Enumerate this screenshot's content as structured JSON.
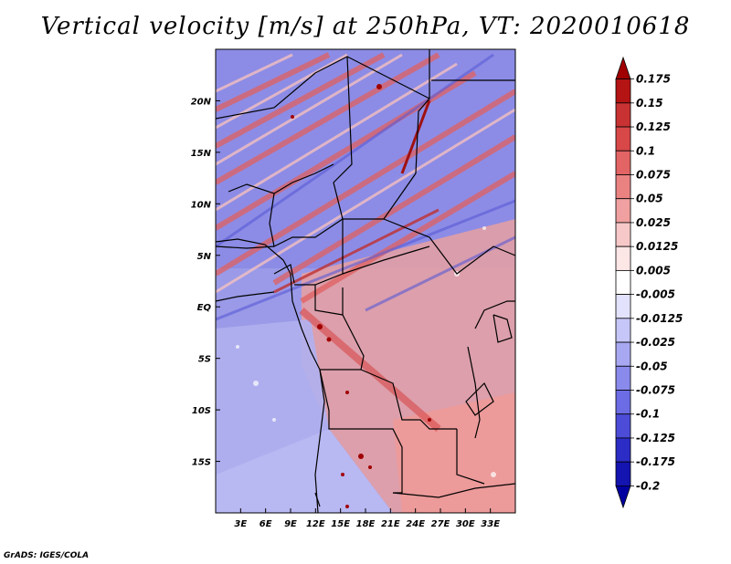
{
  "title": "Vertical velocity [m/s] at 250hPa, VT: 2020010618",
  "credit": "GrADS: IGES/COLA",
  "map": {
    "lon_range": [
      0,
      36
    ],
    "lat_range": [
      -20,
      25
    ],
    "x_ticks": [
      {
        "lon": 3,
        "label": "3E"
      },
      {
        "lon": 6,
        "label": "6E"
      },
      {
        "lon": 9,
        "label": "9E"
      },
      {
        "lon": 12,
        "label": "12E"
      },
      {
        "lon": 15,
        "label": "15E"
      },
      {
        "lon": 18,
        "label": "18E"
      },
      {
        "lon": 21,
        "label": "21E"
      },
      {
        "lon": 24,
        "label": "24E"
      },
      {
        "lon": 27,
        "label": "27E"
      },
      {
        "lon": 30,
        "label": "30E"
      },
      {
        "lon": 33,
        "label": "33E"
      }
    ],
    "y_ticks": [
      {
        "lat": 20,
        "label": "20N"
      },
      {
        "lat": 15,
        "label": "15N"
      },
      {
        "lat": 10,
        "label": "10N"
      },
      {
        "lat": 5,
        "label": "5N"
      },
      {
        "lat": 0,
        "label": "EQ"
      },
      {
        "lat": -5,
        "label": "5S"
      },
      {
        "lat": -10,
        "label": "10S"
      },
      {
        "lat": -15,
        "label": "15S"
      }
    ]
  },
  "colorbar": {
    "labels": [
      "0.175",
      "0.15",
      "0.125",
      "0.1",
      "0.075",
      "0.05",
      "0.025",
      "0.0125",
      "0.005",
      "-0.005",
      "-0.0125",
      "-0.025",
      "-0.05",
      "-0.075",
      "-0.1",
      "-0.125",
      "-0.175",
      "-0.2"
    ],
    "colors": [
      "#a00000",
      "#b41414",
      "#c83232",
      "#d84848",
      "#e26464",
      "#ea8282",
      "#f0a0a0",
      "#f7c8c8",
      "#fde6e6",
      "#ffffff",
      "#e2e2fc",
      "#c6c6f8",
      "#a8a8f2",
      "#8a8aec",
      "#6c6ce4",
      "#4c4cd8",
      "#2c2cc6",
      "#1414b0",
      "#0000a0"
    ]
  }
}
